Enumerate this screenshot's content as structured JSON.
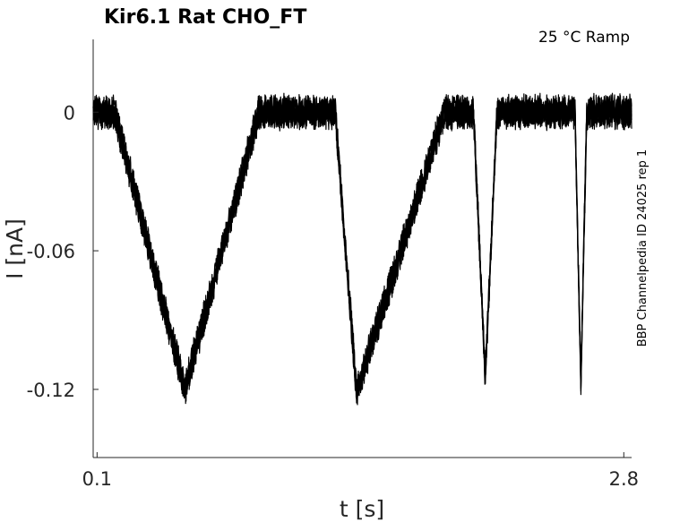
{
  "chart_data": {
    "type": "line",
    "title": "Kir6.1  Rat  CHO_FT",
    "subtitle": "25 °C  Ramp",
    "side_note": "BBP Channelpedia ID 24025 rep 1",
    "xlabel": "t [s]",
    "ylabel": "I [nA]",
    "xlim": [
      0.08,
      2.84
    ],
    "ylim": [
      -0.1495,
      0.0315
    ],
    "x_ticks": [
      0.1,
      2.8
    ],
    "x_tick_labels": [
      "0.1",
      "2.8"
    ],
    "y_ticks": [
      0,
      -0.06,
      -0.12
    ],
    "y_tick_labels": [
      "0",
      "-0.06",
      "-0.12"
    ],
    "grid": false,
    "series": [
      {
        "color": "#000000",
        "x": [
          0.08,
          0.19,
          0.55,
          0.93,
          1.32,
          1.43,
          1.88,
          2.03,
          2.09,
          2.15,
          2.55,
          2.58,
          2.61,
          2.73,
          2.84
        ],
        "y": [
          0.0,
          0.0,
          -0.12,
          0.0,
          0.0,
          -0.121,
          0.0,
          0.0,
          -0.115,
          0.0,
          0.0,
          -0.117,
          0.0,
          0.0,
          0.0
        ]
      }
    ]
  }
}
